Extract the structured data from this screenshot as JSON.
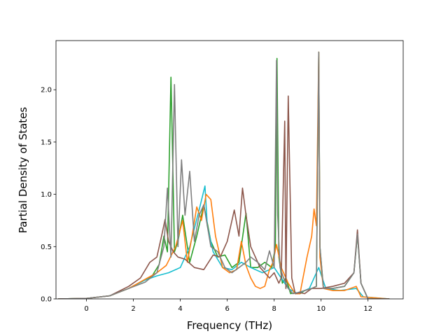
{
  "chart_data": {
    "type": "line",
    "xlabel": "Frequency (THz)",
    "ylabel": "Partial Density of States",
    "xlim": [
      -1.3,
      13.5
    ],
    "ylim": [
      0,
      2.47
    ],
    "xticks": [
      0,
      2,
      4,
      6,
      8,
      10,
      12
    ],
    "yticks": [
      0.0,
      0.5,
      1.0,
      1.5,
      2.0
    ],
    "xtick_labels": [
      "0",
      "2",
      "4",
      "6",
      "8",
      "10",
      "12"
    ],
    "ytick_labels": [
      "0.0",
      "0.5",
      "1.0",
      "1.5",
      "2.0"
    ],
    "grid": false,
    "legend": "none",
    "series": [
      {
        "color": "#2ca02c",
        "x": [
          -1.2,
          0,
          1,
          1.8,
          2.3,
          2.8,
          3.1,
          3.3,
          3.45,
          3.6,
          3.65,
          3.75,
          3.9,
          4.1,
          4.4,
          4.7,
          5.0,
          5.3,
          5.6,
          5.9,
          6.2,
          6.5,
          6.8,
          7.0,
          7.3,
          7.6,
          7.9,
          8.05,
          8.12,
          8.2,
          8.35,
          8.5,
          8.7,
          8.9,
          9.1,
          9.3,
          9.6,
          9.8,
          9.9,
          9.95,
          10.1,
          10.5,
          11.0,
          11.4,
          11.55,
          11.7,
          12.0,
          12.9
        ],
        "y": [
          0,
          0.005,
          0.03,
          0.1,
          0.16,
          0.22,
          0.33,
          0.6,
          0.45,
          2.12,
          1.6,
          0.45,
          0.55,
          0.8,
          0.35,
          0.6,
          0.9,
          0.55,
          0.4,
          0.42,
          0.3,
          0.35,
          0.82,
          0.3,
          0.3,
          0.35,
          0.3,
          0.5,
          2.3,
          0.4,
          0.15,
          0.2,
          0.05,
          0.06,
          0.05,
          0.08,
          0.1,
          0.12,
          2.36,
          0.5,
          0.1,
          0.1,
          0.12,
          0.25,
          0.62,
          0.15,
          0,
          0
        ]
      },
      {
        "color": "#17becf",
        "x": [
          -1.2,
          0,
          1,
          1.8,
          2.5,
          3.0,
          3.5,
          4.0,
          4.4,
          4.8,
          5.05,
          5.15,
          5.4,
          5.8,
          6.2,
          6.6,
          7.0,
          7.5,
          8.0,
          8.3,
          8.6,
          9.0,
          9.5,
          9.9,
          10.2,
          10.8,
          11.5,
          11.8,
          12.9
        ],
        "y": [
          0,
          0.005,
          0.03,
          0.1,
          0.18,
          0.22,
          0.25,
          0.3,
          0.5,
          0.85,
          1.08,
          0.7,
          0.45,
          0.3,
          0.28,
          0.35,
          0.3,
          0.25,
          0.3,
          0.2,
          0.1,
          0.05,
          0.1,
          0.3,
          0.1,
          0.08,
          0.1,
          0.02,
          0
        ]
      },
      {
        "color": "#ff7f0e",
        "x": [
          -1.2,
          0,
          1,
          1.8,
          2.2,
          2.6,
          3.0,
          3.4,
          3.8,
          4.1,
          4.3,
          4.5,
          4.7,
          4.9,
          5.1,
          5.3,
          5.5,
          5.8,
          6.1,
          6.4,
          6.6,
          6.8,
          7.0,
          7.2,
          7.4,
          7.6,
          7.8,
          7.95,
          8.1,
          8.3,
          8.6,
          8.9,
          9.1,
          9.4,
          9.6,
          9.7,
          9.8,
          9.9,
          9.95,
          10.1,
          10.5,
          11.0,
          11.5,
          11.7,
          12.9
        ],
        "y": [
          0,
          0.005,
          0.03,
          0.1,
          0.15,
          0.2,
          0.25,
          0.32,
          0.5,
          0.75,
          0.35,
          0.6,
          0.88,
          0.75,
          1.0,
          0.95,
          0.6,
          0.3,
          0.25,
          0.28,
          0.55,
          0.32,
          0.2,
          0.12,
          0.1,
          0.12,
          0.28,
          0.35,
          0.52,
          0.3,
          0.15,
          0.05,
          0.05,
          0.4,
          0.6,
          0.86,
          0.7,
          2.36,
          0.4,
          0.1,
          0.08,
          0.08,
          0.12,
          0.02,
          0
        ]
      },
      {
        "color": "#8c564b",
        "x": [
          -1.2,
          0,
          1,
          1.8,
          2.3,
          2.7,
          3.0,
          3.2,
          3.35,
          3.5,
          3.7,
          3.9,
          4.2,
          4.6,
          5.0,
          5.4,
          5.7,
          6.0,
          6.3,
          6.5,
          6.65,
          6.8,
          7.0,
          7.4,
          7.8,
          8.0,
          8.2,
          8.3,
          8.45,
          8.5,
          8.6,
          8.75,
          8.9,
          9.1,
          9.3,
          9.6,
          10.0,
          10.5,
          11.0,
          11.4,
          11.55,
          11.7,
          12.0,
          12.9
        ],
        "y": [
          0,
          0.005,
          0.03,
          0.12,
          0.2,
          0.35,
          0.4,
          0.6,
          0.76,
          0.55,
          0.45,
          0.4,
          0.38,
          0.3,
          0.28,
          0.42,
          0.4,
          0.55,
          0.85,
          0.6,
          1.06,
          0.8,
          0.5,
          0.3,
          0.2,
          0.25,
          0.15,
          0.2,
          1.7,
          0.1,
          1.94,
          0.2,
          0.05,
          0.06,
          0.05,
          0.1,
          0.1,
          0.12,
          0.15,
          0.25,
          0.66,
          0.15,
          0,
          0
        ]
      },
      {
        "color": "#7f7f7f",
        "x": [
          -1.2,
          0,
          1,
          1.8,
          2.5,
          3.0,
          3.3,
          3.45,
          3.6,
          3.75,
          3.9,
          4.05,
          4.2,
          4.4,
          4.6,
          4.8,
          5.0,
          5.3,
          5.6,
          5.9,
          6.2,
          6.5,
          6.8,
          7.0,
          7.3,
          7.6,
          7.8,
          8.0,
          8.1,
          8.15,
          8.25,
          8.4,
          8.6,
          8.8,
          9.0,
          9.3,
          9.6,
          9.8,
          9.9,
          9.95,
          10.1,
          10.5,
          11.0,
          11.4,
          11.55,
          11.7,
          12.0,
          12.9
        ],
        "y": [
          0,
          0.005,
          0.03,
          0.1,
          0.16,
          0.25,
          0.5,
          1.06,
          0.4,
          2.05,
          0.5,
          1.33,
          0.8,
          1.22,
          0.55,
          0.8,
          0.9,
          0.5,
          0.45,
          0.3,
          0.25,
          0.3,
          0.35,
          0.4,
          0.35,
          0.28,
          0.46,
          0.3,
          2.28,
          0.8,
          0.3,
          0.2,
          0.1,
          0.05,
          0.06,
          0.08,
          0.1,
          0.12,
          2.36,
          0.5,
          0.1,
          0.1,
          0.12,
          0.25,
          0.62,
          0.15,
          0,
          0
        ]
      }
    ]
  }
}
